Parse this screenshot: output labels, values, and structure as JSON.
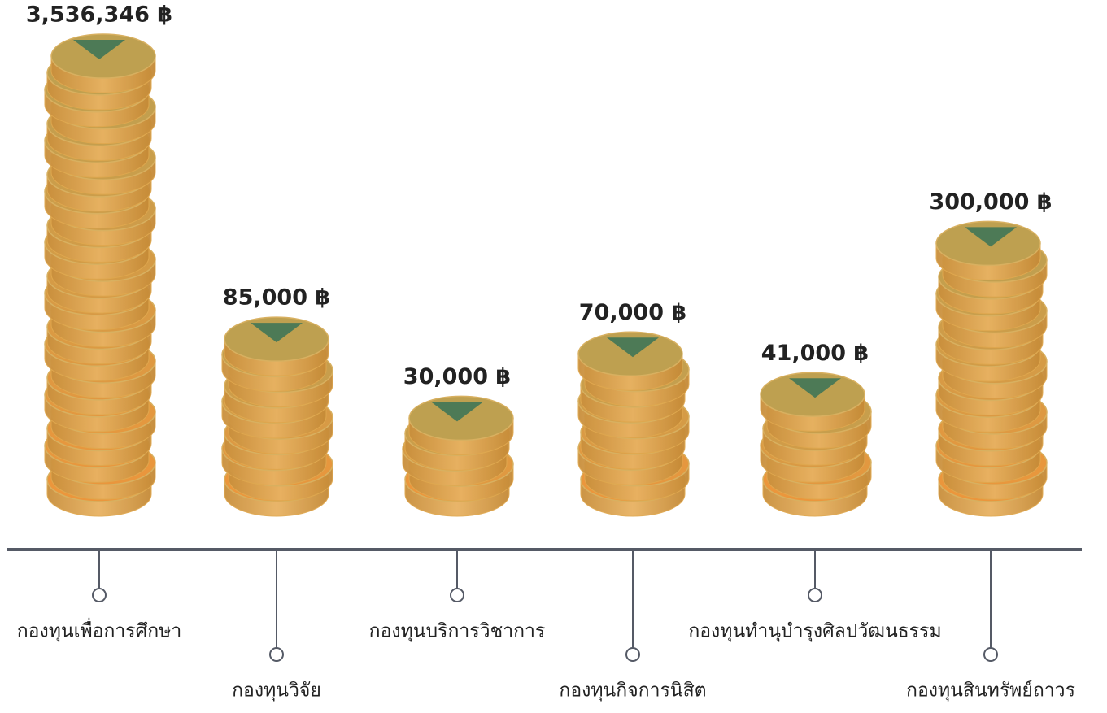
{
  "chart_data": {
    "type": "coin-stack",
    "categories": [
      "กองทุนเพื่อการศึกษา",
      "กองทุนวิจัย",
      "กองทุนบริการวิชาการ",
      "กองทุนกิจการนิสิต",
      "กองทุนทำนุบำรุงศิลปวัฒนธรรม",
      "กองทุนสินทรัพย์ถาวร"
    ],
    "values": [
      3536346,
      85000,
      30000,
      70000,
      41000,
      300000
    ],
    "value_labels": [
      "3,536,346 ฿",
      "85,000 ฿",
      "30,000 ฿",
      "70,000 ฿",
      "41,000 ฿",
      "300,000 ฿"
    ],
    "marker_color": "#4d7a56",
    "axis_color": "#555a66"
  }
}
